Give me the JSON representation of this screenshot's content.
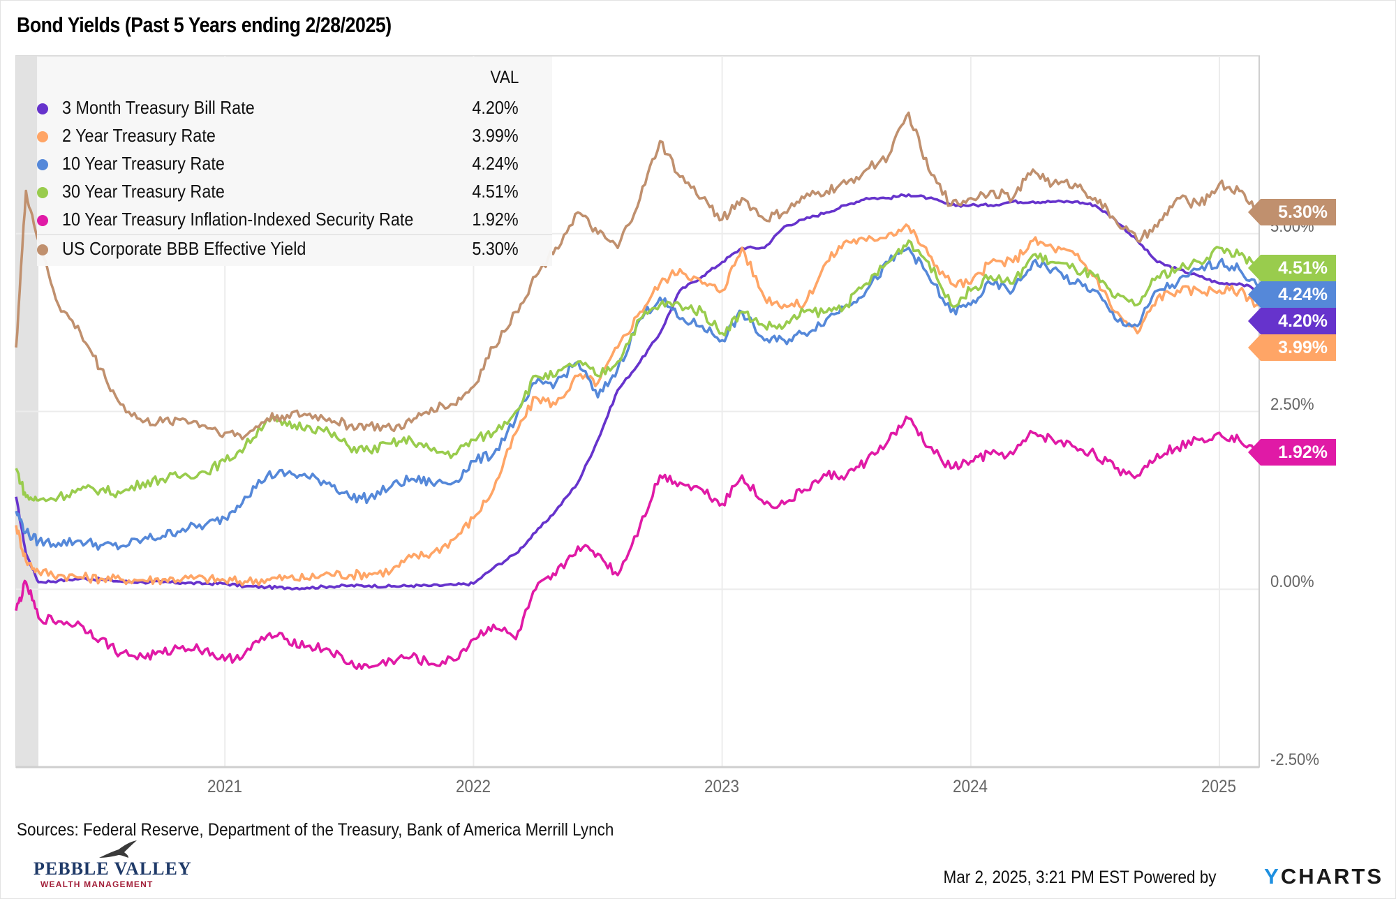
{
  "title": "Bond Yields (Past 5 Years ending 2/28/2025)",
  "legend": {
    "header": "VAL",
    "items": [
      {
        "name": "3 Month Treasury Bill Rate",
        "value": "4.20%",
        "color": "#6633cc"
      },
      {
        "name": "2 Year Treasury Rate",
        "value": "3.99%",
        "color": "#ffa566"
      },
      {
        "name": "10 Year Treasury Rate",
        "value": "4.24%",
        "color": "#5588d9"
      },
      {
        "name": "30 Year Treasury Rate",
        "value": "4.51%",
        "color": "#99cc4d"
      },
      {
        "name": "10 Year Treasury Inflation-Indexed Security Rate",
        "value": "1.92%",
        "color": "#e01aa6"
      },
      {
        "name": "US Corporate BBB Effective Yield",
        "value": "5.30%",
        "color": "#c0906e"
      }
    ]
  },
  "end_labels": [
    {
      "text": "5.30%",
      "color": "#c0906e",
      "value": 5.3
    },
    {
      "text": "4.51%",
      "color": "#99cc4d",
      "value": 4.51
    },
    {
      "text": "4.24%",
      "color": "#5588d9",
      "value": 4.24
    },
    {
      "text": "4.20%",
      "color": "#6633cc",
      "value": 4.2
    },
    {
      "text": "3.99%",
      "color": "#ffa566",
      "value": 3.99
    },
    {
      "text": "1.92%",
      "color": "#e01aa6",
      "value": 1.92
    }
  ],
  "footer": {
    "sources": "Sources: Federal Reserve, Department of the Treasury, Bank of America Merrill Lynch",
    "timestamp": "Mar 2, 2025, 3:21 PM EST Powered by",
    "brand_y": "Y",
    "brand_rest": "CHARTS",
    "logo_name": "PEBBLE VALLEY",
    "logo_sub": "WEALTH MANAGEMENT"
  },
  "chart_data": {
    "type": "line",
    "title": "Bond Yields (Past 5 Years ending 2/28/2025)",
    "xlabel": "",
    "ylabel": "",
    "x_range": [
      2020.16,
      2025.16
    ],
    "ylim": [
      -2.5,
      7.5
    ],
    "grid": true,
    "legend_position": "top-left",
    "recession_shading": [
      2020.16,
      2020.25
    ],
    "x_ticks": [
      {
        "value": 2021,
        "label": "2021"
      },
      {
        "value": 2022,
        "label": "2022"
      },
      {
        "value": 2023,
        "label": "2023"
      },
      {
        "value": 2024,
        "label": "2024"
      },
      {
        "value": 2025,
        "label": "2025"
      }
    ],
    "y_ticks": [
      {
        "value": 5.0,
        "label": "5.00%"
      },
      {
        "value": 2.5,
        "label": "2.50%"
      },
      {
        "value": 0.0,
        "label": "0.00%"
      },
      {
        "value": -2.5,
        "label": "-2.50%"
      }
    ],
    "x": [
      2020.16,
      2020.2,
      2020.25,
      2020.33,
      2020.42,
      2020.5,
      2020.58,
      2020.67,
      2020.75,
      2020.83,
      2020.92,
      2021.0,
      2021.08,
      2021.17,
      2021.25,
      2021.33,
      2021.42,
      2021.5,
      2021.58,
      2021.67,
      2021.75,
      2021.83,
      2021.92,
      2022.0,
      2022.08,
      2022.17,
      2022.25,
      2022.33,
      2022.42,
      2022.5,
      2022.58,
      2022.67,
      2022.75,
      2022.83,
      2022.92,
      2023.0,
      2023.08,
      2023.17,
      2023.25,
      2023.33,
      2023.42,
      2023.5,
      2023.58,
      2023.67,
      2023.75,
      2023.83,
      2023.92,
      2024.0,
      2024.08,
      2024.17,
      2024.25,
      2024.33,
      2024.42,
      2024.5,
      2024.58,
      2024.67,
      2024.75,
      2024.83,
      2024.92,
      2025.0,
      2025.08,
      2025.16
    ],
    "series": [
      {
        "name": "3 Month Treasury Bill Rate",
        "color": "#6633cc",
        "values": [
          1.3,
          0.5,
          0.1,
          0.12,
          0.15,
          0.14,
          0.11,
          0.1,
          0.1,
          0.09,
          0.08,
          0.08,
          0.04,
          0.03,
          0.02,
          0.02,
          0.04,
          0.05,
          0.05,
          0.04,
          0.05,
          0.05,
          0.06,
          0.08,
          0.3,
          0.5,
          0.8,
          1.1,
          1.5,
          2.1,
          2.8,
          3.2,
          3.6,
          4.2,
          4.4,
          4.6,
          4.8,
          4.8,
          5.1,
          5.2,
          5.3,
          5.4,
          5.5,
          5.5,
          5.55,
          5.5,
          5.4,
          5.4,
          5.4,
          5.45,
          5.45,
          5.45,
          5.45,
          5.4,
          5.2,
          4.9,
          4.6,
          4.5,
          4.4,
          4.3,
          4.3,
          4.2
        ]
      },
      {
        "name": "2 Year Treasury Rate",
        "color": "#ffa566",
        "values": [
          0.9,
          0.4,
          0.25,
          0.2,
          0.17,
          0.15,
          0.14,
          0.13,
          0.14,
          0.15,
          0.15,
          0.12,
          0.11,
          0.14,
          0.16,
          0.15,
          0.22,
          0.2,
          0.22,
          0.26,
          0.45,
          0.5,
          0.7,
          1.0,
          1.4,
          2.2,
          2.7,
          2.6,
          3.0,
          2.9,
          3.4,
          3.9,
          4.3,
          4.5,
          4.3,
          4.2,
          4.8,
          4.1,
          4.0,
          4.0,
          4.6,
          4.9,
          4.9,
          5.0,
          5.1,
          4.7,
          4.3,
          4.3,
          4.6,
          4.6,
          4.9,
          4.8,
          4.7,
          4.4,
          3.9,
          3.6,
          4.1,
          4.2,
          4.2,
          4.2,
          4.2,
          3.99
        ]
      },
      {
        "name": "10 Year Treasury Rate",
        "color": "#5588d9",
        "values": [
          1.1,
          0.8,
          0.67,
          0.65,
          0.68,
          0.62,
          0.6,
          0.7,
          0.75,
          0.85,
          0.9,
          1.0,
          1.3,
          1.6,
          1.63,
          1.58,
          1.5,
          1.3,
          1.28,
          1.45,
          1.55,
          1.5,
          1.5,
          1.8,
          1.9,
          2.4,
          2.9,
          2.9,
          3.2,
          2.7,
          3.1,
          3.8,
          4.1,
          3.8,
          3.7,
          3.5,
          3.9,
          3.5,
          3.5,
          3.6,
          3.8,
          4.0,
          4.2,
          4.6,
          4.8,
          4.4,
          3.9,
          4.0,
          4.3,
          4.2,
          4.6,
          4.5,
          4.3,
          4.2,
          3.8,
          3.7,
          4.2,
          4.3,
          4.5,
          4.6,
          4.5,
          4.24
        ]
      },
      {
        "name": "30 Year Treasury Rate",
        "color": "#99cc4d",
        "values": [
          1.7,
          1.3,
          1.25,
          1.3,
          1.4,
          1.4,
          1.35,
          1.5,
          1.55,
          1.6,
          1.65,
          1.8,
          2.0,
          2.4,
          2.3,
          2.3,
          2.2,
          2.0,
          1.95,
          2.05,
          2.1,
          1.95,
          1.9,
          2.1,
          2.2,
          2.5,
          3.0,
          3.0,
          3.2,
          3.0,
          3.2,
          3.8,
          4.0,
          4.0,
          3.9,
          3.6,
          3.9,
          3.7,
          3.7,
          3.9,
          3.9,
          4.0,
          4.3,
          4.6,
          4.9,
          4.6,
          4.0,
          4.2,
          4.4,
          4.3,
          4.7,
          4.6,
          4.5,
          4.4,
          4.1,
          4.0,
          4.4,
          4.5,
          4.6,
          4.8,
          4.7,
          4.51
        ]
      },
      {
        "name": "10 Year Treasury Inflation-Indexed Security Rate",
        "color": "#e01aa6",
        "values": [
          -0.3,
          0.1,
          -0.4,
          -0.45,
          -0.5,
          -0.7,
          -0.9,
          -0.95,
          -0.9,
          -0.8,
          -0.85,
          -1.0,
          -0.9,
          -0.65,
          -0.7,
          -0.8,
          -0.85,
          -1.05,
          -1.1,
          -1.0,
          -0.95,
          -1.05,
          -1.0,
          -0.7,
          -0.5,
          -0.7,
          0.0,
          0.2,
          0.6,
          0.5,
          0.2,
          0.9,
          1.6,
          1.5,
          1.4,
          1.2,
          1.6,
          1.2,
          1.2,
          1.4,
          1.6,
          1.6,
          1.8,
          2.1,
          2.4,
          2.0,
          1.7,
          1.8,
          1.9,
          1.9,
          2.2,
          2.1,
          2.0,
          1.9,
          1.7,
          1.6,
          1.9,
          2.0,
          2.1,
          2.2,
          2.1,
          1.92
        ]
      },
      {
        "name": "US Corporate BBB Effective Yield",
        "color": "#c0906e",
        "values": [
          3.4,
          5.6,
          4.9,
          4.0,
          3.6,
          3.1,
          2.6,
          2.35,
          2.35,
          2.4,
          2.3,
          2.2,
          2.15,
          2.4,
          2.45,
          2.45,
          2.4,
          2.3,
          2.3,
          2.25,
          2.35,
          2.55,
          2.6,
          2.85,
          3.4,
          3.9,
          4.4,
          4.8,
          5.3,
          5.0,
          4.8,
          5.5,
          6.3,
          5.8,
          5.5,
          5.2,
          5.5,
          5.2,
          5.3,
          5.5,
          5.6,
          5.7,
          5.9,
          6.1,
          6.7,
          5.9,
          5.4,
          5.5,
          5.6,
          5.5,
          5.9,
          5.7,
          5.7,
          5.5,
          5.2,
          4.9,
          5.1,
          5.5,
          5.4,
          5.7,
          5.6,
          5.3
        ]
      }
    ]
  }
}
